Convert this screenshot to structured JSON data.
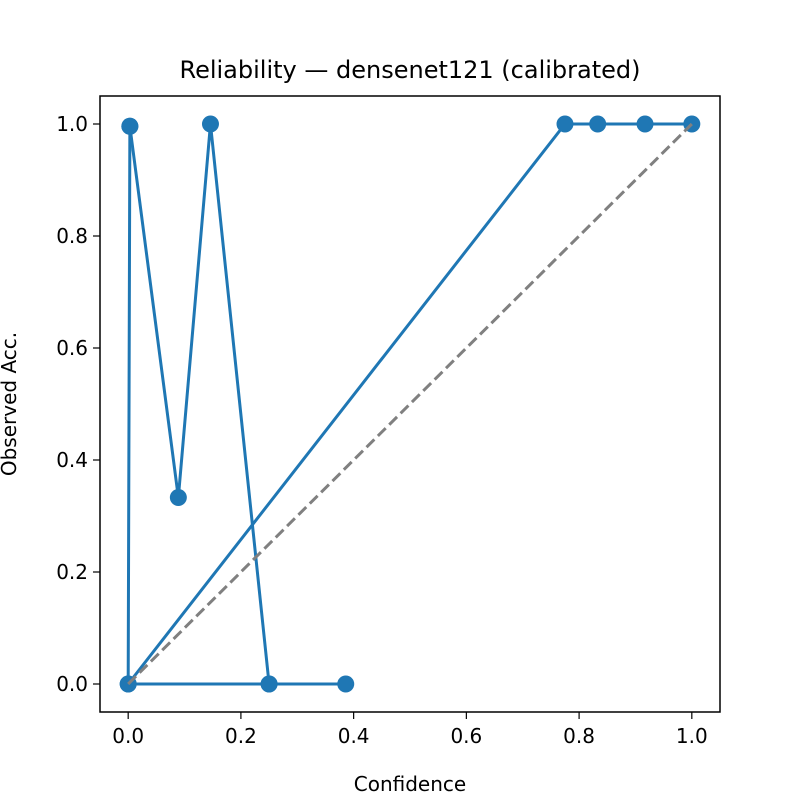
{
  "chart_data": {
    "type": "line",
    "title": "Reliability — densenet121 (calibrated)",
    "xlabel": "Confidence",
    "ylabel": "Observed Acc.",
    "xlim": [
      -0.05,
      1.05
    ],
    "ylim": [
      -0.05,
      1.05
    ],
    "xticks": [
      0.0,
      0.2,
      0.4,
      0.6,
      0.8,
      1.0
    ],
    "yticks": [
      0.0,
      0.2,
      0.4,
      0.6,
      0.8,
      1.0
    ],
    "xtick_labels": [
      "0.0",
      "0.2",
      "0.4",
      "0.6",
      "0.8",
      "1.0"
    ],
    "ytick_labels": [
      "0.0",
      "0.2",
      "0.4",
      "0.6",
      "0.8",
      "1.0"
    ],
    "grid": false,
    "series": [
      {
        "color": "#1f77b4",
        "style": "solid-with-markers",
        "x": [
          0.003,
          0.0,
          0.25,
          0.386
        ],
        "y": [
          0.996,
          0.0,
          0.0,
          0.0
        ]
      },
      {
        "color": "#1f77b4",
        "style": "solid-with-markers",
        "x": [
          0.0,
          0.775,
          0.833,
          0.917,
          1.0
        ],
        "y": [
          0.0,
          1.0,
          1.0,
          1.0,
          1.0
        ]
      },
      {
        "color": "#1f77b4",
        "style": "solid-with-markers",
        "x": [
          0.003,
          0.089,
          0.146,
          0.25
        ],
        "y": [
          0.996,
          0.333,
          1.0,
          0.0
        ]
      },
      {
        "color": "#808080",
        "style": "dashed",
        "x": [
          0.0,
          1.0
        ],
        "y": [
          0.0,
          1.0
        ]
      }
    ]
  }
}
